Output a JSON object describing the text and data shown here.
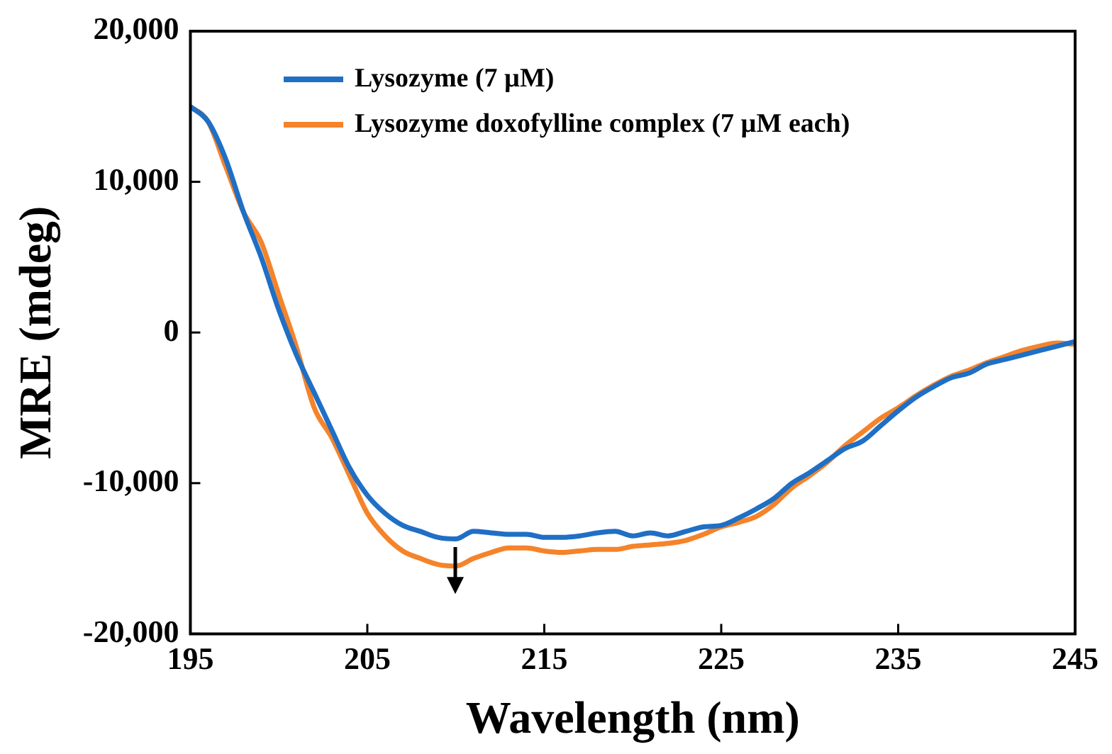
{
  "chart_data": {
    "type": "line",
    "xlabel": "Wavelength (nm)",
    "ylabel": "MRE (mdeg)",
    "xlim": [
      195,
      245
    ],
    "xticks": [
      195,
      205,
      215,
      225,
      235,
      245
    ],
    "ylim": [
      -20000,
      20000
    ],
    "yticks": [
      {
        "value": -20000,
        "label": "-20,000"
      },
      {
        "value": -10000,
        "label": "-10,000"
      },
      {
        "value": 0,
        "label": "0"
      },
      {
        "value": 10000,
        "label": "10,000"
      },
      {
        "value": 20000,
        "label": "20,000"
      }
    ],
    "grid": false,
    "legend": "top left",
    "marker": "none",
    "line_style": "solid",
    "x": [
      195,
      196,
      197,
      198,
      199,
      200,
      201,
      202,
      203,
      204,
      205,
      206,
      207,
      208,
      209,
      210,
      211,
      212,
      213,
      214,
      215,
      216,
      217,
      218,
      219,
      220,
      221,
      222,
      223,
      224,
      225,
      226,
      227,
      228,
      229,
      230,
      231,
      232,
      233,
      234,
      235,
      236,
      237,
      238,
      239,
      240,
      241,
      242,
      243,
      244,
      245
    ],
    "series": [
      {
        "name": "Lysozyme (7 µM)",
        "color": "#1f6fc5",
        "values": [
          15000,
          14000,
          11500,
          8000,
          5000,
          1500,
          -1500,
          -4000,
          -6500,
          -9000,
          -10800,
          -12000,
          -12800,
          -13200,
          -13600,
          -13700,
          -13200,
          -13300,
          -13400,
          -13400,
          -13600,
          -13600,
          -13500,
          -13300,
          -13200,
          -13500,
          -13300,
          -13500,
          -13200,
          -12900,
          -12800,
          -12300,
          -11700,
          -11000,
          -10000,
          -9300,
          -8500,
          -7700,
          -7200,
          -6200,
          -5200,
          -4300,
          -3600,
          -3000,
          -2700,
          -2100,
          -1800,
          -1500,
          -1200,
          -900,
          -600
        ]
      },
      {
        "name": "Lysozyme doxofylline complex (7 µM each)",
        "color": "#f5832a",
        "values": [
          15000,
          14000,
          11000,
          8000,
          6000,
          2500,
          -1000,
          -5000,
          -7000,
          -9500,
          -12000,
          -13500,
          -14500,
          -15000,
          -15400,
          -15500,
          -15000,
          -14600,
          -14300,
          -14300,
          -14500,
          -14600,
          -14500,
          -14400,
          -14400,
          -14200,
          -14100,
          -14000,
          -13800,
          -13400,
          -12900,
          -12600,
          -12200,
          -11400,
          -10300,
          -9500,
          -8600,
          -7500,
          -6600,
          -5700,
          -5000,
          -4200,
          -3500,
          -2900,
          -2500,
          -2000,
          -1600,
          -1200,
          -900,
          -700,
          -800
        ]
      }
    ]
  }
}
